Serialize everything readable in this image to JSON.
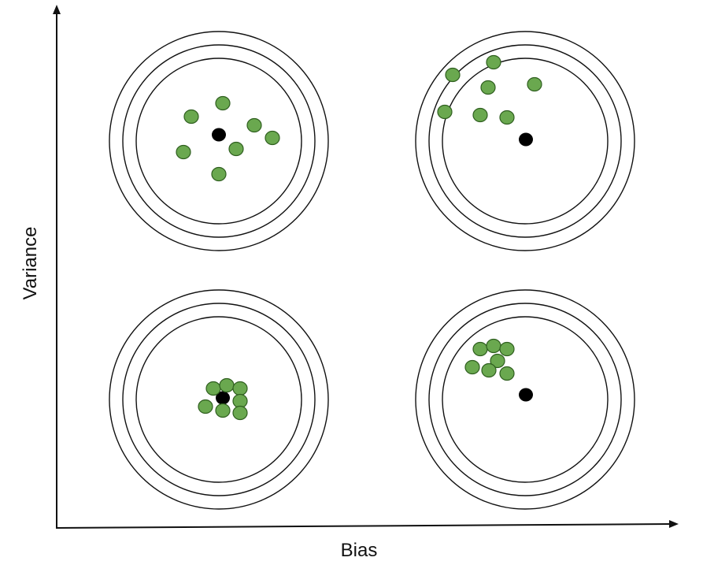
{
  "axes": {
    "x_label": "Bias",
    "y_label": "Variance"
  },
  "colors": {
    "background": "#ffffff",
    "ring_stroke": "#111111",
    "axis_stroke": "#111111",
    "bullseye": "#000000",
    "shot_fill": "#6aa84f",
    "shot_stroke": "#2f5f1f"
  }
}
